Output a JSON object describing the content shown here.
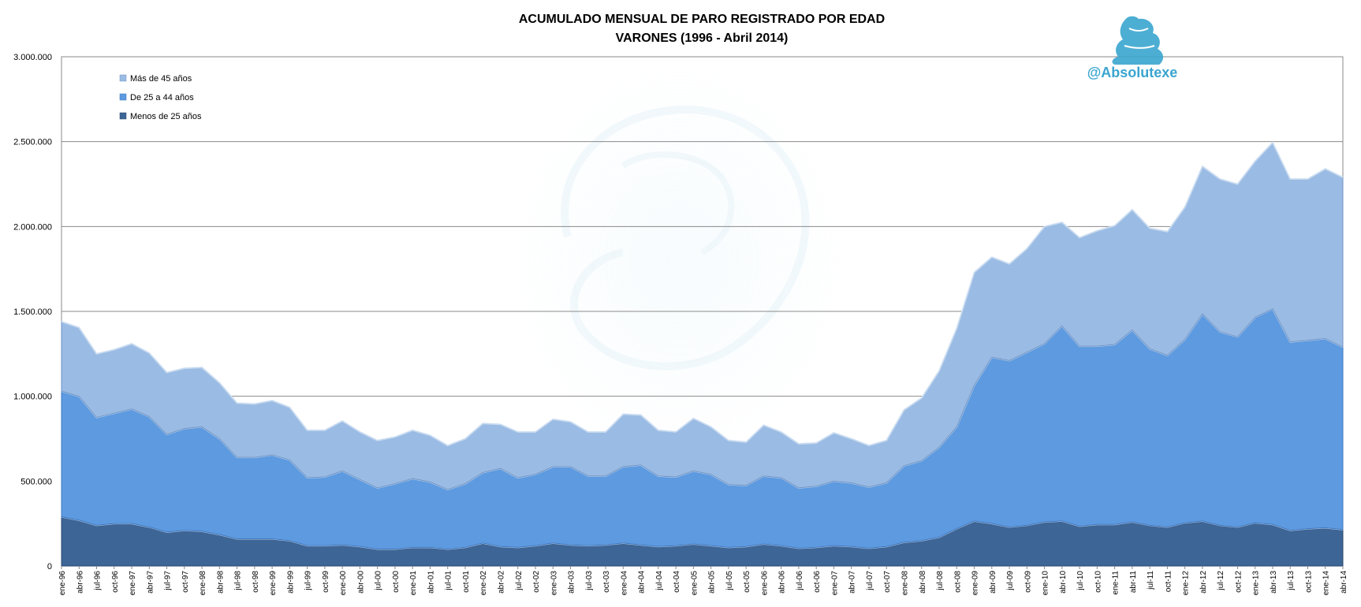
{
  "chart_data": {
    "type": "area",
    "stacked": true,
    "title": "ACUMULADO MENSUAL DE PARO REGISTRADO POR EDAD",
    "subtitle": "VARONES (1996 - Abril 2014)",
    "watermark": "@Absolutexe",
    "ylim": [
      0,
      3000000
    ],
    "yticks": [
      0,
      500000,
      1000000,
      1500000,
      2000000,
      2500000,
      3000000
    ],
    "ytick_labels": [
      "0",
      "500.000",
      "1.000.000",
      "1.500.000",
      "2.000.000",
      "2.500.000",
      "3.000.000"
    ],
    "grid": true,
    "legend_position": "top-left",
    "x_tick_labels": [
      "ene-96",
      "abr-96",
      "jul-96",
      "oct-96",
      "ene-97",
      "abr-97",
      "jul-97",
      "oct-97",
      "ene-98",
      "abr-98",
      "jul-98",
      "oct-98",
      "ene-99",
      "abr-99",
      "jul-99",
      "oct-99",
      "ene-00",
      "abr-00",
      "jul-00",
      "oct-00",
      "ene-01",
      "abr-01",
      "jul-01",
      "oct-01",
      "ene-02",
      "abr-02",
      "jul-02",
      "oct-02",
      "ene-03",
      "abr-03",
      "jul-03",
      "oct-03",
      "ene-04",
      "abr-04",
      "jul-04",
      "oct-04",
      "ene-05",
      "abr-05",
      "jul-05",
      "oct-05",
      "ene-06",
      "abr-06",
      "jul-06",
      "oct-06",
      "ene-07",
      "abr-07",
      "jul-07",
      "oct-07",
      "ene-08",
      "abr-08",
      "jul-08",
      "oct-08",
      "ene-09",
      "abr-09",
      "jul-09",
      "oct-09",
      "ene-10",
      "abr-10",
      "jul-10",
      "oct-10",
      "ene-11",
      "abr-11",
      "jul-11",
      "oct-11",
      "ene-12",
      "abr-12",
      "jul-12",
      "oct-12",
      "ene-13",
      "abr-13",
      "jul-13",
      "oct-13",
      "ene-14",
      "abr-14"
    ],
    "series": [
      {
        "name": "Menos de 25 años",
        "color": "#3d6596",
        "values": [
          290000,
          270000,
          240000,
          250000,
          250000,
          230000,
          200000,
          210000,
          205000,
          185000,
          160000,
          160000,
          160000,
          150000,
          120000,
          120000,
          125000,
          115000,
          100000,
          100000,
          110000,
          110000,
          100000,
          110000,
          135000,
          115000,
          110000,
          120000,
          135000,
          125000,
          120000,
          125000,
          135000,
          125000,
          115000,
          120000,
          130000,
          120000,
          110000,
          115000,
          130000,
          120000,
          105000,
          110000,
          120000,
          115000,
          105000,
          115000,
          140000,
          150000,
          170000,
          220000,
          265000,
          250000,
          230000,
          240000,
          260000,
          265000,
          235000,
          245000,
          245000,
          260000,
          240000,
          230000,
          255000,
          265000,
          240000,
          230000,
          255000,
          245000,
          210000,
          220000,
          225000,
          215000
        ]
      },
      {
        "name": "De 25 a 44 años",
        "color": "#5d9ae0",
        "values": [
          740000,
          730000,
          635000,
          650000,
          675000,
          650000,
          575000,
          600000,
          615000,
          565000,
          480000,
          480000,
          495000,
          475000,
          400000,
          405000,
          435000,
          395000,
          360000,
          385000,
          405000,
          385000,
          350000,
          375000,
          415000,
          460000,
          410000,
          420000,
          450000,
          460000,
          410000,
          405000,
          450000,
          470000,
          415000,
          405000,
          430000,
          420000,
          370000,
          360000,
          400000,
          400000,
          355000,
          360000,
          380000,
          375000,
          360000,
          375000,
          450000,
          470000,
          530000,
          600000,
          800000,
          980000,
          980000,
          1020000,
          1050000,
          1150000,
          1060000,
          1050000,
          1060000,
          1130000,
          1040000,
          1010000,
          1080000,
          1220000,
          1140000,
          1120000,
          1210000,
          1270000,
          1110000,
          1110000,
          1115000,
          1075000
        ]
      },
      {
        "name": "Más de 45 años",
        "color": "#9abbe3",
        "values": [
          410000,
          405000,
          375000,
          375000,
          385000,
          375000,
          365000,
          355000,
          350000,
          330000,
          320000,
          315000,
          320000,
          310000,
          280000,
          275000,
          295000,
          280000,
          280000,
          275000,
          285000,
          275000,
          260000,
          265000,
          290000,
          260000,
          270000,
          250000,
          280000,
          265000,
          260000,
          260000,
          310000,
          295000,
          270000,
          265000,
          310000,
          280000,
          260000,
          255000,
          300000,
          270000,
          260000,
          255000,
          285000,
          260000,
          245000,
          250000,
          330000,
          370000,
          450000,
          580000,
          665000,
          590000,
          570000,
          610000,
          690000,
          610000,
          640000,
          680000,
          700000,
          710000,
          710000,
          730000,
          780000,
          870000,
          900000,
          900000,
          920000,
          980000,
          960000,
          950000,
          1000000,
          1000000
        ]
      }
    ]
  }
}
